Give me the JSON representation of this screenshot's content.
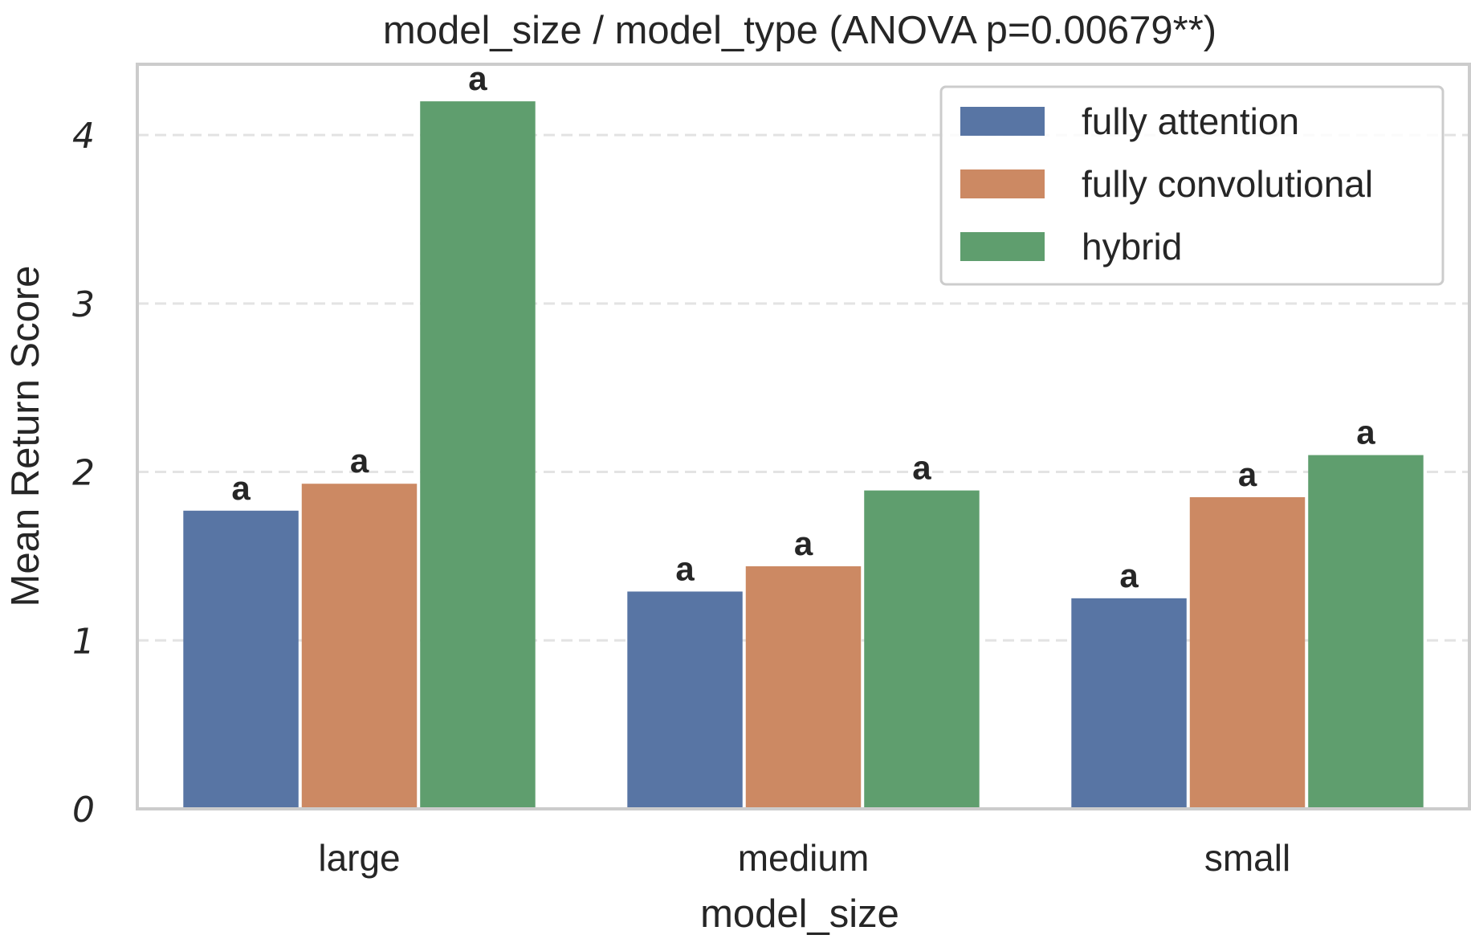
{
  "chart_data": {
    "type": "bar",
    "title": "model_size / model_type  (ANOVA p=0.00679**)",
    "xlabel": "model_size",
    "ylabel": "Mean Return Score",
    "categories": [
      "large",
      "medium",
      "small"
    ],
    "series": [
      {
        "name": "fully attention",
        "color": "#5875a4",
        "values": [
          1.77,
          1.29,
          1.25
        ],
        "labels": [
          "a",
          "a",
          "a"
        ]
      },
      {
        "name": "fully convolutional",
        "color": "#cc8963",
        "values": [
          1.93,
          1.44,
          1.85
        ],
        "labels": [
          "a",
          "a",
          "a"
        ]
      },
      {
        "name": "hybrid",
        "color": "#5f9e6e",
        "values": [
          4.2,
          1.89,
          2.1
        ],
        "labels": [
          "a",
          "a",
          "a"
        ]
      }
    ],
    "yticks": [
      0,
      1,
      2,
      3,
      4
    ],
    "ylim": [
      0,
      4.42
    ],
    "grid": "y-dashed",
    "legend_position": "top-right"
  }
}
